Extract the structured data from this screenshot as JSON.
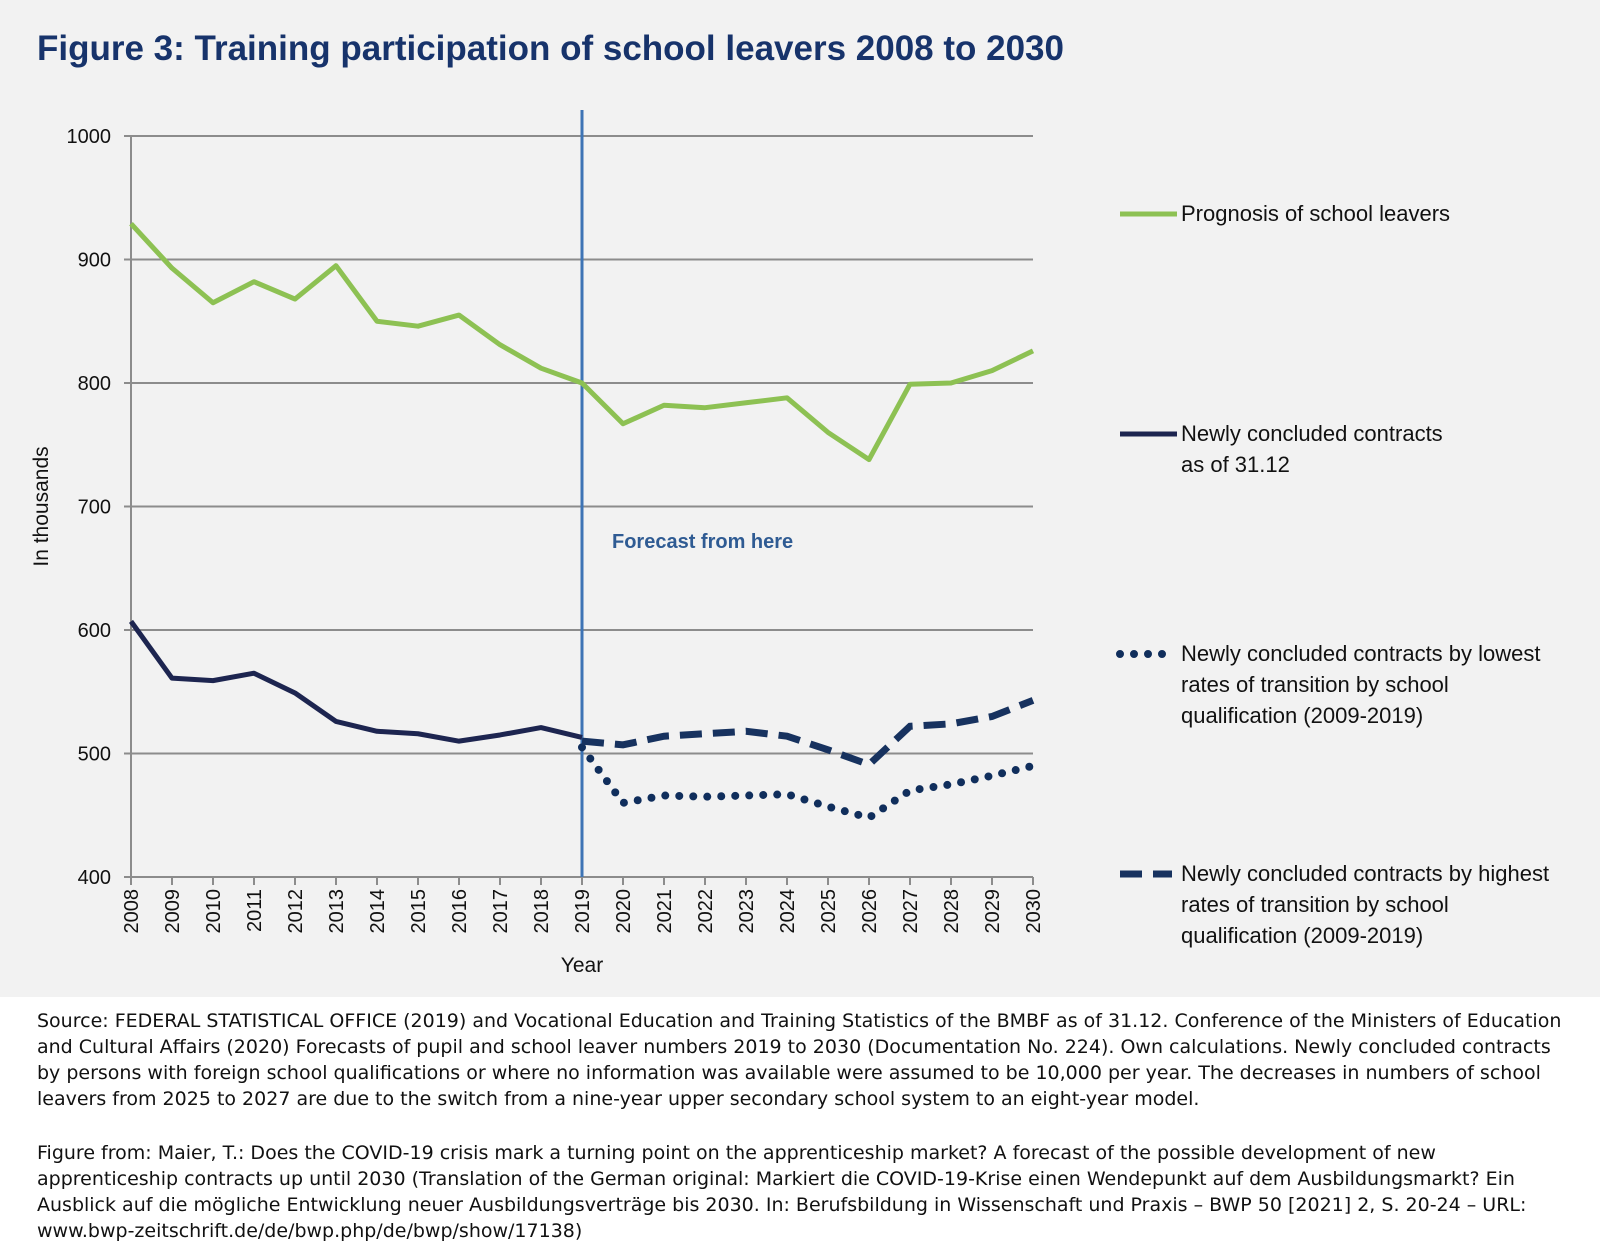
{
  "chart_data": {
    "type": "line",
    "title": "Figure 3: Training participation of school leavers 2008 to 2030",
    "ylabel": "In thousands",
    "xlabel": "Year",
    "x": [
      2008,
      2009,
      2010,
      2011,
      2012,
      2013,
      2014,
      2015,
      2016,
      2017,
      2018,
      2019,
      2020,
      2021,
      2022,
      2023,
      2024,
      2025,
      2026,
      2027,
      2028,
      2029,
      2030
    ],
    "xlim": [
      2008,
      2030
    ],
    "xticks": [
      2008,
      2009,
      2010,
      2011,
      2012,
      2013,
      2014,
      2015,
      2016,
      2017,
      2018,
      2019,
      2020,
      2021,
      2022,
      2023,
      2024,
      2025,
      2026,
      2027,
      2028,
      2029,
      2030
    ],
    "ylim": [
      400,
      1000
    ],
    "yticks": [
      400,
      500,
      600,
      700,
      800,
      900,
      1000
    ],
    "grid": true,
    "annotation": {
      "text": "Forecast from here",
      "x": 2019
    },
    "series": [
      {
        "name": "Prognosis of school leavers",
        "color": "#8dc153",
        "style": "solid",
        "values": [
          929,
          893,
          865,
          882,
          868,
          895,
          850,
          846,
          855,
          831,
          812,
          800,
          767,
          782,
          780,
          784,
          788,
          760,
          738,
          799,
          800,
          810,
          826
        ]
      },
      {
        "name": "Newly concluded contracts as of 31.12",
        "color": "#1d2550",
        "style": "solid",
        "values": [
          607,
          561,
          559,
          565,
          549,
          526,
          518,
          516,
          510,
          515,
          521,
          513,
          null,
          null,
          null,
          null,
          null,
          null,
          null,
          null,
          null,
          null,
          null
        ]
      },
      {
        "name": "Newly concluded contracts by lowest rates of transition by school qualification (2009-2019)",
        "color": "#102e5c",
        "style": "dotted",
        "values": [
          null,
          null,
          null,
          null,
          null,
          null,
          null,
          null,
          null,
          null,
          null,
          505,
          460,
          466,
          465,
          466,
          467,
          457,
          448,
          470,
          475,
          482,
          490
        ]
      },
      {
        "name": "Newly concluded contracts by highest rates of transition by school qualification (2009-2019)",
        "color": "#17325f",
        "style": "dashed",
        "values": [
          null,
          null,
          null,
          null,
          null,
          null,
          null,
          null,
          null,
          null,
          null,
          510,
          507,
          514,
          516,
          518,
          514,
          503,
          491,
          522,
          524,
          530,
          543
        ]
      }
    ]
  },
  "footer": {
    "source": "Source: FEDERAL STATISTICAL OFFICE (2019) and Vocational Education and Training Statistics of the BMBF as of 31.12. Conference of the Ministers of Education and Cultural Affairs (2020) Forecasts of pupil and school leaver numbers 2019 to 2030 (Documentation No. 224). Own calculations. Newly concluded contracts by persons with foreign school qualifications or where no information was available were assumed to be 10,000 per year. The decreases in numbers of school leavers from 2025 to 2027 are due to the switch from a nine-year upper secondary school system to an eight-year model.",
    "figure_from": "Figure from: Maier, T.: Does the COVID-19 crisis mark a turning point on the apprenticeship market? A forecast of the possible development of new apprenticeship contracts up until 2030 (Translation of the German original: Markiert die COVID-19-Krise einen Wendepunkt auf dem Ausbildungsmarkt? Ein Ausblick auf die mögliche Entwicklung neuer Ausbildungsverträge bis 2030. In: Berufsbildung in Wissenschaft und Praxis – BWP 50 [2021] 2, S. 20-24 – URL: www.bwp-zeitschrift.de/de/bwp.php/de/bwp/show/17138)"
  }
}
